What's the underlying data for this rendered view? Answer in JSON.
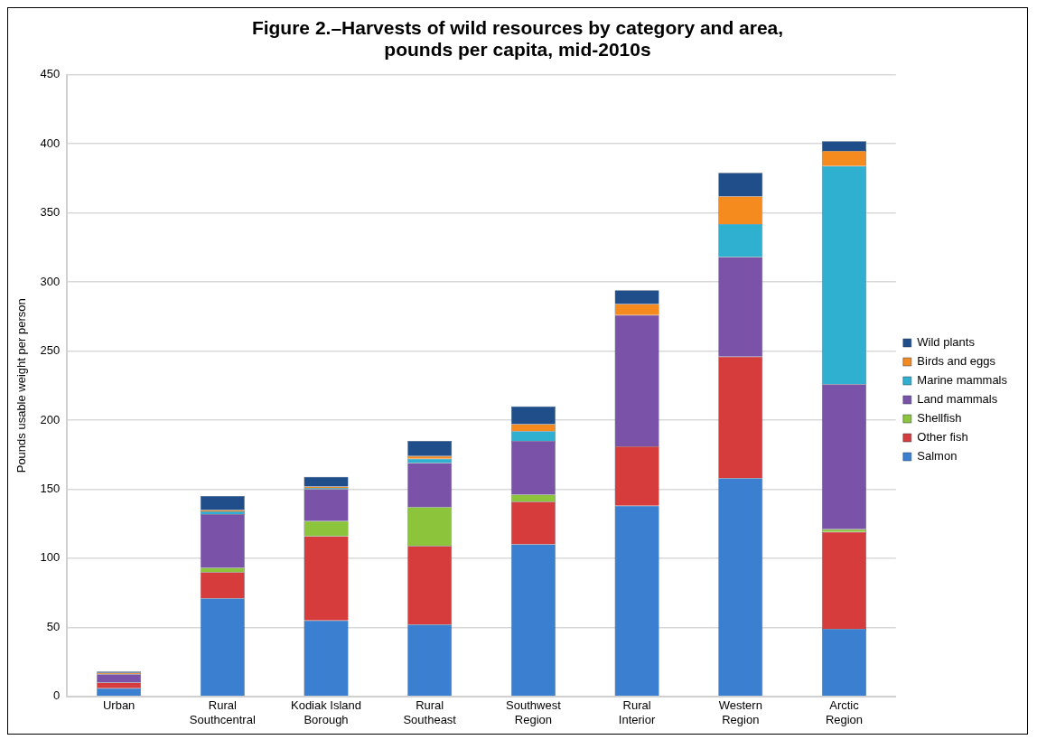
{
  "chart_data": {
    "type": "bar",
    "title": "Figure 2.–Harvests of wild resources by category and area, pounds per capita, mid-2010s",
    "ylabel": "Pounds usable weight per person",
    "categories": [
      "Urban",
      "Rural Southcentral",
      "Kodiak Island Borough",
      "Rural Southeast",
      "Southwest Region",
      "Rural Interior",
      "Western Region",
      "Arctic Region"
    ],
    "stacked": true,
    "ylim": [
      0,
      450
    ],
    "yticks": [
      0,
      50,
      100,
      150,
      200,
      250,
      300,
      350,
      400,
      450
    ],
    "grid": "y",
    "legend": "right",
    "series": [
      {
        "name": "Salmon",
        "color": "#3a7fd0",
        "values": [
          6,
          71,
          55,
          52,
          110,
          138,
          158,
          49
        ]
      },
      {
        "name": "Other fish",
        "color": "#d63c3c",
        "values": [
          4,
          19,
          61,
          57,
          31,
          43,
          88,
          70
        ]
      },
      {
        "name": "Shellfish",
        "color": "#8cc43c",
        "values": [
          0,
          3,
          11,
          28,
          5,
          0,
          0,
          2
        ]
      },
      {
        "name": "Land mammals",
        "color": "#7a52a8",
        "values": [
          6,
          39,
          23,
          32,
          39,
          95,
          72,
          105
        ]
      },
      {
        "name": "Marine mammals",
        "color": "#2fb0d0",
        "values": [
          0,
          2,
          1,
          3,
          7,
          0,
          24,
          158
        ]
      },
      {
        "name": "Birds and eggs",
        "color": "#f58a1f",
        "values": [
          1,
          1,
          1,
          2,
          5,
          8,
          20,
          11
        ]
      },
      {
        "name": "Wild plants",
        "color": "#1f4e8a",
        "values": [
          1,
          10,
          7,
          11,
          13,
          10,
          17,
          7
        ]
      }
    ]
  }
}
